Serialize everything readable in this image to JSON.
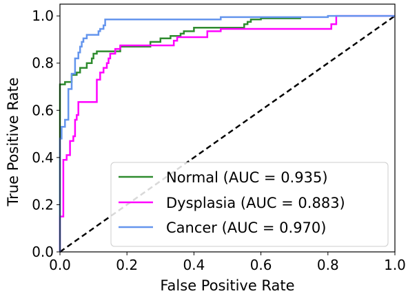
{
  "chart_data": {
    "type": "line",
    "title": "",
    "xlabel": "False Positive Rate",
    "ylabel": "True Positive Rate",
    "xlim": [
      0.0,
      1.0
    ],
    "ylim": [
      0.0,
      1.05
    ],
    "xticks": [
      "0.0",
      "0.2",
      "0.4",
      "0.6",
      "0.8",
      "1.0"
    ],
    "yticks": [
      "0.0",
      "0.2",
      "0.4",
      "0.6",
      "0.8",
      "1.0"
    ],
    "grid": false,
    "legend_position": "lower-right",
    "series": [
      {
        "name": "Normal (AUC = 0.935)",
        "color": "#2e8b2e",
        "points": [
          [
            0,
            0
          ],
          [
            0,
            0.71
          ],
          [
            0.015,
            0.71
          ],
          [
            0.015,
            0.72
          ],
          [
            0.035,
            0.72
          ],
          [
            0.035,
            0.75
          ],
          [
            0.05,
            0.75
          ],
          [
            0.05,
            0.76
          ],
          [
            0.06,
            0.76
          ],
          [
            0.06,
            0.78
          ],
          [
            0.08,
            0.78
          ],
          [
            0.08,
            0.8
          ],
          [
            0.095,
            0.8
          ],
          [
            0.095,
            0.82
          ],
          [
            0.1,
            0.82
          ],
          [
            0.1,
            0.84
          ],
          [
            0.11,
            0.84
          ],
          [
            0.11,
            0.85
          ],
          [
            0.18,
            0.85
          ],
          [
            0.18,
            0.87
          ],
          [
            0.27,
            0.87
          ],
          [
            0.27,
            0.89
          ],
          [
            0.3,
            0.89
          ],
          [
            0.3,
            0.905
          ],
          [
            0.33,
            0.905
          ],
          [
            0.33,
            0.915
          ],
          [
            0.36,
            0.915
          ],
          [
            0.36,
            0.925
          ],
          [
            0.37,
            0.925
          ],
          [
            0.37,
            0.935
          ],
          [
            0.4,
            0.935
          ],
          [
            0.4,
            0.95
          ],
          [
            0.55,
            0.95
          ],
          [
            0.55,
            0.965
          ],
          [
            0.56,
            0.965
          ],
          [
            0.56,
            0.975
          ],
          [
            0.57,
            0.975
          ],
          [
            0.57,
            0.985
          ],
          [
            0.6,
            0.985
          ],
          [
            0.6,
            0.99
          ],
          [
            0.72,
            0.99
          ]
        ]
      },
      {
        "name": "Dysplasia (AUC = 0.883)",
        "color": "#ff00ff",
        "points": [
          [
            0,
            0
          ],
          [
            0,
            0.15
          ],
          [
            0.01,
            0.15
          ],
          [
            0.01,
            0.39
          ],
          [
            0.02,
            0.39
          ],
          [
            0.02,
            0.41
          ],
          [
            0.03,
            0.41
          ],
          [
            0.03,
            0.47
          ],
          [
            0.04,
            0.47
          ],
          [
            0.04,
            0.49
          ],
          [
            0.045,
            0.49
          ],
          [
            0.045,
            0.56
          ],
          [
            0.05,
            0.56
          ],
          [
            0.05,
            0.58
          ],
          [
            0.055,
            0.58
          ],
          [
            0.055,
            0.635
          ],
          [
            0.11,
            0.635
          ],
          [
            0.11,
            0.73
          ],
          [
            0.12,
            0.73
          ],
          [
            0.12,
            0.76
          ],
          [
            0.13,
            0.76
          ],
          [
            0.13,
            0.78
          ],
          [
            0.14,
            0.78
          ],
          [
            0.14,
            0.8
          ],
          [
            0.145,
            0.8
          ],
          [
            0.145,
            0.82
          ],
          [
            0.15,
            0.82
          ],
          [
            0.15,
            0.84
          ],
          [
            0.165,
            0.84
          ],
          [
            0.165,
            0.86
          ],
          [
            0.18,
            0.86
          ],
          [
            0.18,
            0.875
          ],
          [
            0.34,
            0.875
          ],
          [
            0.34,
            0.895
          ],
          [
            0.35,
            0.895
          ],
          [
            0.35,
            0.91
          ],
          [
            0.44,
            0.91
          ],
          [
            0.44,
            0.935
          ],
          [
            0.48,
            0.935
          ],
          [
            0.48,
            0.945
          ],
          [
            0.81,
            0.945
          ],
          [
            0.81,
            0.965
          ],
          [
            0.825,
            0.965
          ],
          [
            0.825,
            1.0
          ],
          [
            1.0,
            1.0
          ]
        ]
      },
      {
        "name": "Cancer (AUC = 0.970)",
        "color": "#6495ed",
        "points": [
          [
            0,
            0
          ],
          [
            0,
            0.48
          ],
          [
            0.005,
            0.48
          ],
          [
            0.005,
            0.53
          ],
          [
            0.015,
            0.53
          ],
          [
            0.015,
            0.56
          ],
          [
            0.025,
            0.56
          ],
          [
            0.025,
            0.69
          ],
          [
            0.035,
            0.69
          ],
          [
            0.035,
            0.755
          ],
          [
            0.045,
            0.755
          ],
          [
            0.045,
            0.82
          ],
          [
            0.055,
            0.82
          ],
          [
            0.055,
            0.845
          ],
          [
            0.06,
            0.845
          ],
          [
            0.06,
            0.87
          ],
          [
            0.065,
            0.87
          ],
          [
            0.065,
            0.89
          ],
          [
            0.07,
            0.89
          ],
          [
            0.07,
            0.905
          ],
          [
            0.08,
            0.905
          ],
          [
            0.08,
            0.92
          ],
          [
            0.115,
            0.92
          ],
          [
            0.115,
            0.935
          ],
          [
            0.12,
            0.935
          ],
          [
            0.12,
            0.945
          ],
          [
            0.13,
            0.945
          ],
          [
            0.13,
            0.96
          ],
          [
            0.135,
            0.96
          ],
          [
            0.135,
            0.985
          ],
          [
            0.48,
            0.985
          ],
          [
            0.48,
            0.995
          ],
          [
            0.8,
            0.995
          ],
          [
            0.8,
            1.0
          ],
          [
            1.0,
            1.0
          ]
        ]
      },
      {
        "name": "",
        "color": "#000000",
        "dashed": true,
        "points": [
          [
            0,
            0
          ],
          [
            1,
            1
          ]
        ]
      }
    ]
  }
}
